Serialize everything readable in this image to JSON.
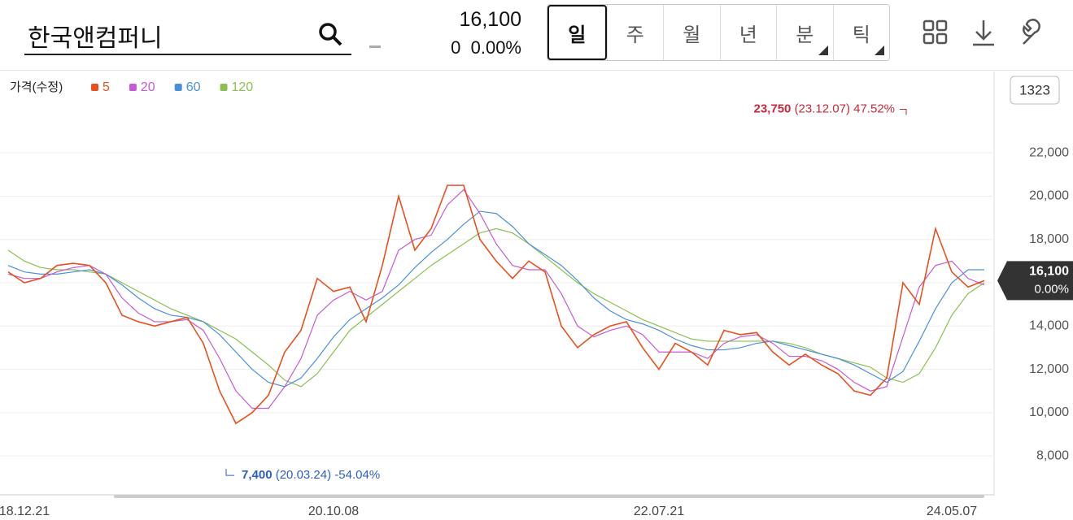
{
  "header": {
    "stock_name": "한국앤컴퍼니",
    "price": "16,100",
    "change": "0",
    "change_rate": "0.00%",
    "tabs": [
      "일",
      "주",
      "월",
      "년",
      "분",
      "틱"
    ],
    "count_badge": "1323"
  },
  "chart_data": {
    "type": "line",
    "legend_title": "가격(수정)",
    "categories": [
      null,
      "18.12.21",
      null,
      null,
      null,
      null,
      null,
      null,
      null,
      null,
      null,
      null,
      null,
      null,
      null,
      null,
      null,
      null,
      null,
      null,
      "20.10.08",
      null,
      null,
      null,
      null,
      null,
      null,
      null,
      null,
      null,
      null,
      null,
      null,
      null,
      null,
      null,
      null,
      null,
      null,
      null,
      "22.07.21",
      null,
      null,
      null,
      null,
      null,
      null,
      null,
      null,
      null,
      null,
      null,
      null,
      null,
      null,
      null,
      null,
      null,
      "24.05.07",
      null,
      null
    ],
    "series": [
      {
        "name": "5",
        "color": "#e8501e",
        "values": [
          16500,
          16000,
          16200,
          16800,
          16900,
          16800,
          16000,
          14500,
          14200,
          14000,
          14200,
          14400,
          13200,
          11000,
          9500,
          10000,
          10800,
          12800,
          13800,
          16200,
          15600,
          15800,
          14200,
          16800,
          20000,
          17500,
          18500,
          20500,
          20500,
          18000,
          17000,
          16200,
          17000,
          16500,
          14000,
          13000,
          13600,
          14000,
          14200,
          13000,
          12000,
          13200,
          12800,
          12200,
          13800,
          13600,
          13700,
          12800,
          12200,
          12700,
          12200,
          11800,
          11000,
          10800,
          11600,
          16000,
          15000,
          18500,
          16500,
          15800,
          16100
        ]
      },
      {
        "name": "20",
        "color": "#c45ad6",
        "values": [
          16400,
          16200,
          16200,
          16500,
          16700,
          16800,
          16400,
          15300,
          14600,
          14200,
          14200,
          14300,
          13800,
          12500,
          11000,
          10200,
          10200,
          11200,
          12500,
          14500,
          15200,
          15600,
          15200,
          15600,
          17500,
          18000,
          18200,
          19600,
          20300,
          19200,
          17800,
          16800,
          16600,
          16600,
          15500,
          14000,
          13500,
          13800,
          14000,
          13600,
          12800,
          12800,
          12800,
          12500,
          13200,
          13500,
          13600,
          13200,
          12600,
          12600,
          12400,
          12000,
          11400,
          11000,
          11200,
          13500,
          15800,
          16800,
          17000,
          16200,
          15900
        ]
      },
      {
        "name": "60",
        "color": "#4a90d9",
        "values": [
          16800,
          16500,
          16400,
          16400,
          16500,
          16600,
          16400,
          15900,
          15300,
          14800,
          14500,
          14400,
          14200,
          13600,
          12800,
          12000,
          11400,
          11200,
          11600,
          12500,
          13500,
          14300,
          14800,
          15300,
          15900,
          16700,
          17400,
          18000,
          18700,
          19300,
          19200,
          18600,
          17800,
          17300,
          16800,
          16100,
          15300,
          14700,
          14300,
          14100,
          13800,
          13400,
          13100,
          12900,
          12900,
          13000,
          13200,
          13300,
          13100,
          12900,
          12700,
          12500,
          12200,
          11800,
          11400,
          11900,
          13300,
          14800,
          16000,
          16600,
          16600
        ]
      },
      {
        "name": "120",
        "color": "#8bbf52",
        "values": [
          17500,
          17000,
          16700,
          16600,
          16600,
          16500,
          16400,
          16000,
          15600,
          15200,
          14800,
          14500,
          14200,
          13800,
          13400,
          12800,
          12200,
          11500,
          11200,
          11800,
          12800,
          13800,
          14400,
          15000,
          15600,
          16200,
          16800,
          17300,
          17800,
          18300,
          18500,
          18300,
          17800,
          17200,
          16600,
          16000,
          15500,
          15100,
          14700,
          14300,
          14000,
          13700,
          13400,
          13300,
          13300,
          13300,
          13300,
          13300,
          13200,
          13000,
          12700,
          12500,
          12300,
          12100,
          11600,
          11400,
          11800,
          13000,
          14500,
          15500,
          16000
        ]
      }
    ],
    "ylim": [
      6240,
      25760
    ],
    "yticks": [
      {
        "value": 8000,
        "label": "8,000"
      },
      {
        "value": 10000,
        "label": "10,000"
      },
      {
        "value": 12000,
        "label": "12,000"
      },
      {
        "value": 14000,
        "label": "14,000"
      },
      {
        "value": 16000,
        "label": "16,000"
      },
      {
        "value": 18000,
        "label": "18,000"
      },
      {
        "value": 20000,
        "label": "20,000"
      },
      {
        "value": 22000,
        "label": "22,000"
      }
    ],
    "grid": true,
    "high": {
      "value": 23750,
      "label": "23,750",
      "date": "(23.12.07)",
      "change": "47.52%"
    },
    "low": {
      "value": 7400,
      "label": "7,400",
      "date": "(20.03.24)",
      "change": "-54.04%"
    },
    "last": {
      "value": 16100,
      "label": "16,100",
      "change": "0.00%"
    }
  }
}
